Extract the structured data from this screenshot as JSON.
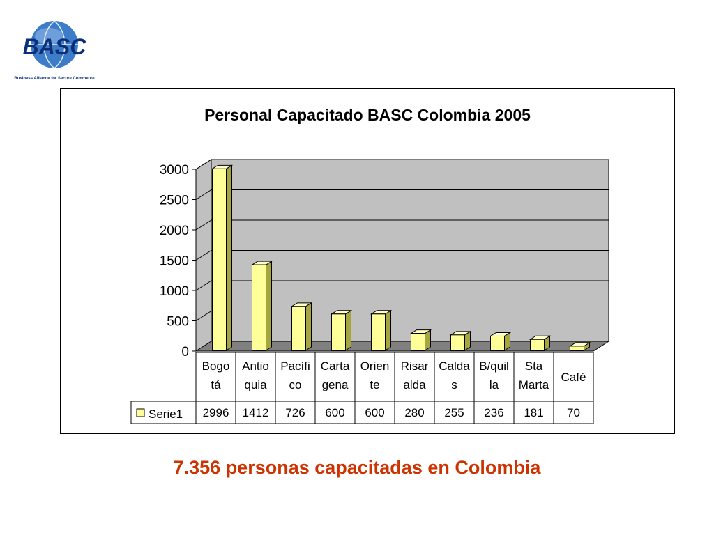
{
  "logo": {
    "text": "BASC",
    "tagline": "Business Alliance for Secure Commerce"
  },
  "caption": "7.356 personas capacitadas en Colombia",
  "chart_data": {
    "type": "bar",
    "title": "Personal Capacitado BASC Colombia 2005",
    "categories": [
      [
        "Bogo",
        "tá"
      ],
      [
        "Antio",
        "quia"
      ],
      [
        "Pacífi",
        "co"
      ],
      [
        "Carta",
        "gena"
      ],
      [
        "Orien",
        "te"
      ],
      [
        "Risar",
        "alda"
      ],
      [
        "Calda",
        "s"
      ],
      [
        "B/quil",
        "la"
      ],
      [
        "Sta",
        "Marta"
      ],
      [
        "Café"
      ]
    ],
    "series": [
      {
        "name": "Serie1",
        "values": [
          2996,
          1412,
          726,
          600,
          600,
          280,
          255,
          236,
          181,
          70
        ]
      }
    ],
    "yticks": [
      "0",
      "500",
      "1000",
      "1500",
      "2000",
      "2500",
      "3000"
    ],
    "ylim": [
      0,
      3000
    ],
    "grid": true,
    "legend": "data-table",
    "colors": {
      "bar_front": "#ffff99",
      "bar_side": "#a6a640",
      "bar_top": "#ffffcc",
      "wall": "#c0c0c0",
      "floor": "#808080"
    }
  }
}
